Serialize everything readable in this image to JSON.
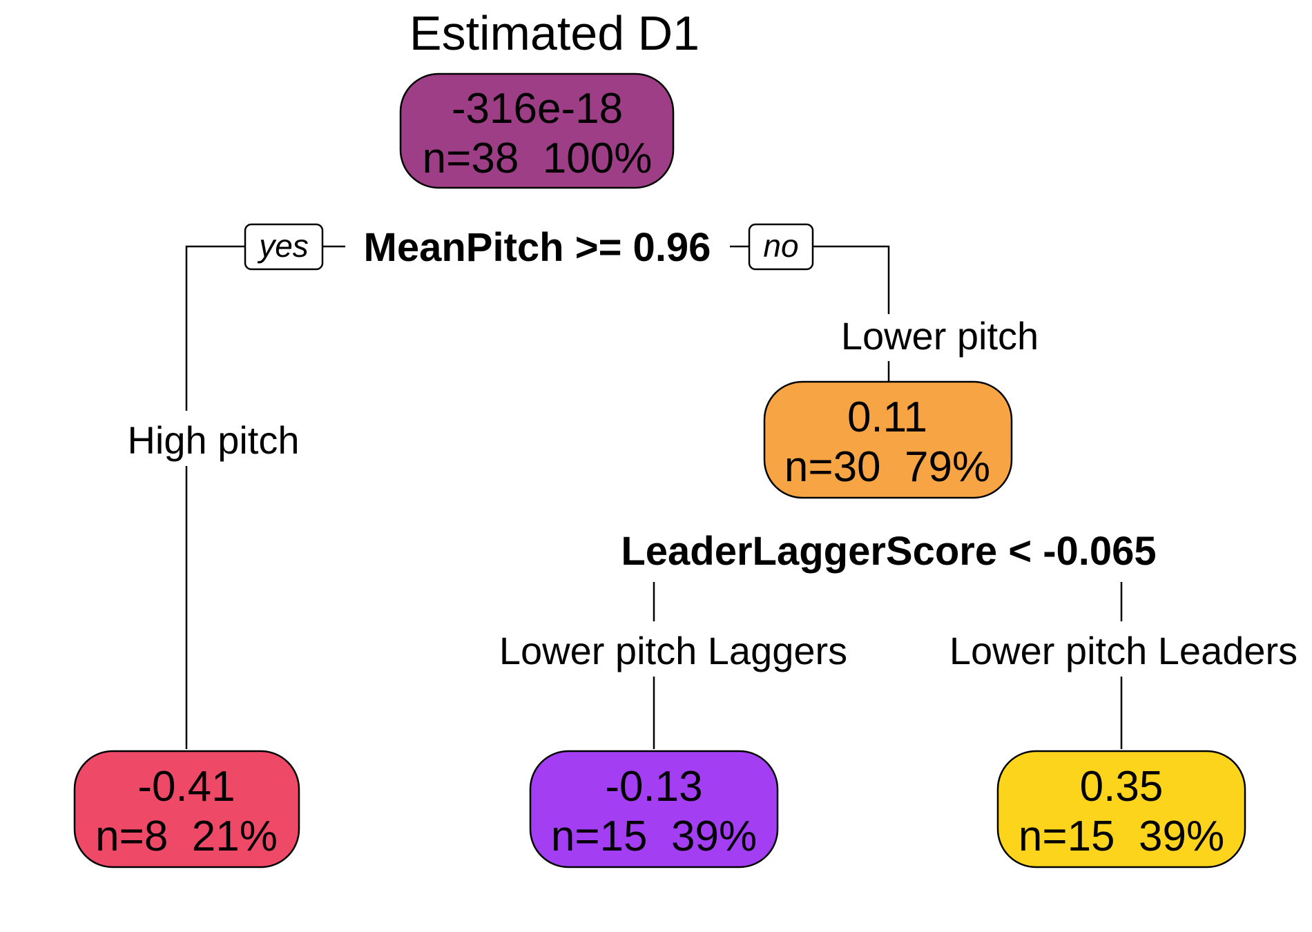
{
  "title": "Estimated D1",
  "nodes": {
    "root": {
      "value": "-316e-18",
      "stats": "n=38  100%",
      "color": "#9e3e86"
    },
    "right": {
      "value": "0.11",
      "stats": "n=30  79%",
      "color": "#f6a444"
    },
    "leaf_high": {
      "value": "-0.41",
      "stats": "n=8  21%",
      "color": "#ef4968"
    },
    "leaf_laggers": {
      "value": "-0.13",
      "stats": "n=15  39%",
      "color": "#a43ef2"
    },
    "leaf_leaders": {
      "value": "0.35",
      "stats": "n=15  39%",
      "color": "#fdd41c"
    }
  },
  "splits": {
    "root": "MeanPitch >= 0.96",
    "right": "LeaderLaggerScore < -0.065"
  },
  "tags": {
    "yes": "yes",
    "no": "no"
  },
  "branch_labels": {
    "high": "High pitch",
    "lower": "Lower pitch",
    "laggers": "Lower pitch Laggers",
    "leaders": "Lower pitch Leaders"
  }
}
